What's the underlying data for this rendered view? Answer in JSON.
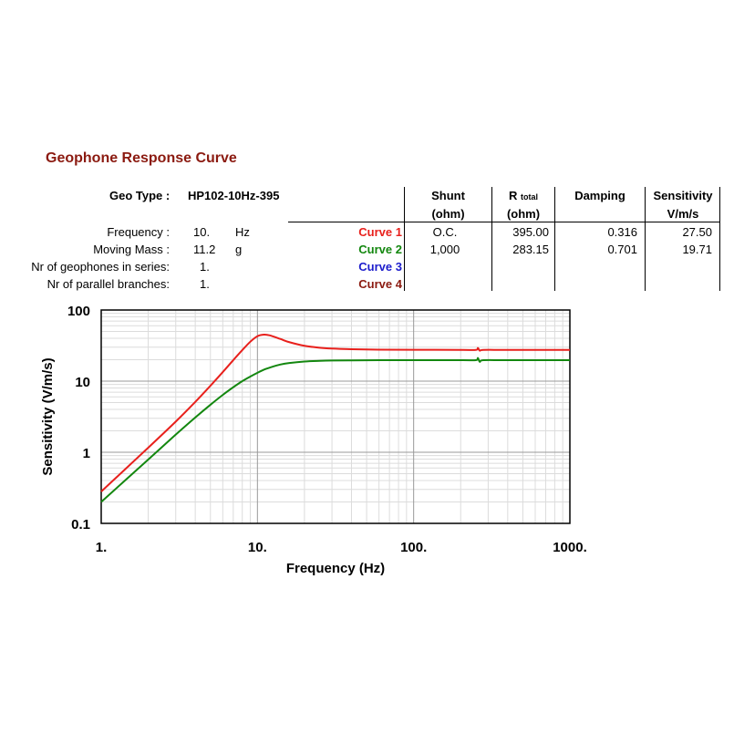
{
  "title": "Geophone Response Curve",
  "geo": {
    "label": "Geo Type  :",
    "value": "HP102-10Hz-395"
  },
  "params": [
    {
      "label": "Frequency :",
      "value": "10.",
      "unit": "Hz"
    },
    {
      "label": "Moving Mass :",
      "value": "11.2",
      "unit": "g"
    },
    {
      "label": "Nr of geophones in series:",
      "value": "1.",
      "unit": ""
    },
    {
      "label": "Nr of parallel branches:",
      "value": "1.",
      "unit": ""
    }
  ],
  "table": {
    "headers": {
      "shunt": [
        "Shunt",
        "(ohm)"
      ],
      "r_main": "R",
      "r_sub": "total",
      "r_unit": "(ohm)",
      "damping": "Damping",
      "sensitivity": [
        "Sensitivity",
        "V/m/s"
      ]
    },
    "rows": [
      {
        "name": "Curve 1",
        "color": "#e8201c",
        "shunt": "O.C.",
        "r_total": "395.00",
        "damping": "0.316",
        "sensitivity": "27.50"
      },
      {
        "name": "Curve 2",
        "color": "#13870f",
        "shunt": "1,000",
        "r_total": "283.15",
        "damping": "0.701",
        "sensitivity": "19.71"
      },
      {
        "name": "Curve 3",
        "color": "#1c1ccc",
        "shunt": "",
        "r_total": "",
        "damping": "",
        "sensitivity": ""
      },
      {
        "name": "Curve 4",
        "color": "#8b1a10",
        "shunt": "",
        "r_total": "",
        "damping": "",
        "sensitivity": ""
      }
    ]
  },
  "chart_data": {
    "type": "line",
    "xscale": "log",
    "yscale": "log",
    "xlim": [
      1,
      1000
    ],
    "ylim": [
      0.1,
      100
    ],
    "xlabel": "Frequency (Hz)",
    "ylabel": "Sensitivity (V/m/s)",
    "xticks": [
      1,
      10,
      100,
      1000
    ],
    "xtick_labels": [
      "1.",
      "10.",
      "100.",
      "1000."
    ],
    "yticks": [
      0.1,
      1,
      10,
      100
    ],
    "ytick_labels": [
      "0.1",
      "1",
      "10",
      "100"
    ],
    "grid": true,
    "series": [
      {
        "name": "Curve 1",
        "color": "#e8201c",
        "x": [
          1,
          2,
          3,
          4,
          5,
          6,
          7,
          8,
          9,
          10,
          11,
          12,
          14,
          16,
          20,
          25,
          30,
          40,
          60,
          100,
          200,
          250,
          258,
          265,
          280,
          400,
          1000
        ],
        "y": [
          0.28,
          1.16,
          2.7,
          5.1,
          8.6,
          13.4,
          19.7,
          27.3,
          35.8,
          42.8,
          45.1,
          44.0,
          39.2,
          35.3,
          31.4,
          29.5,
          28.7,
          28.1,
          27.7,
          27.6,
          27.5,
          27.5,
          29.2,
          26.8,
          27.5,
          27.5,
          27.5
        ]
      },
      {
        "name": "Curve 2",
        "color": "#13870f",
        "x": [
          1,
          2,
          3,
          4,
          5,
          6,
          7,
          8,
          9,
          10,
          11,
          12,
          14,
          16,
          20,
          25,
          30,
          40,
          60,
          100,
          200,
          250,
          258,
          265,
          280,
          400,
          1000
        ],
        "y": [
          0.2,
          0.79,
          1.77,
          3.08,
          4.65,
          6.4,
          8.2,
          10.0,
          11.6,
          13.1,
          14.5,
          15.5,
          17.1,
          18.0,
          18.9,
          19.3,
          19.5,
          19.6,
          19.7,
          19.7,
          19.7,
          19.7,
          21.1,
          18.7,
          19.7,
          19.7,
          19.7
        ]
      }
    ]
  }
}
